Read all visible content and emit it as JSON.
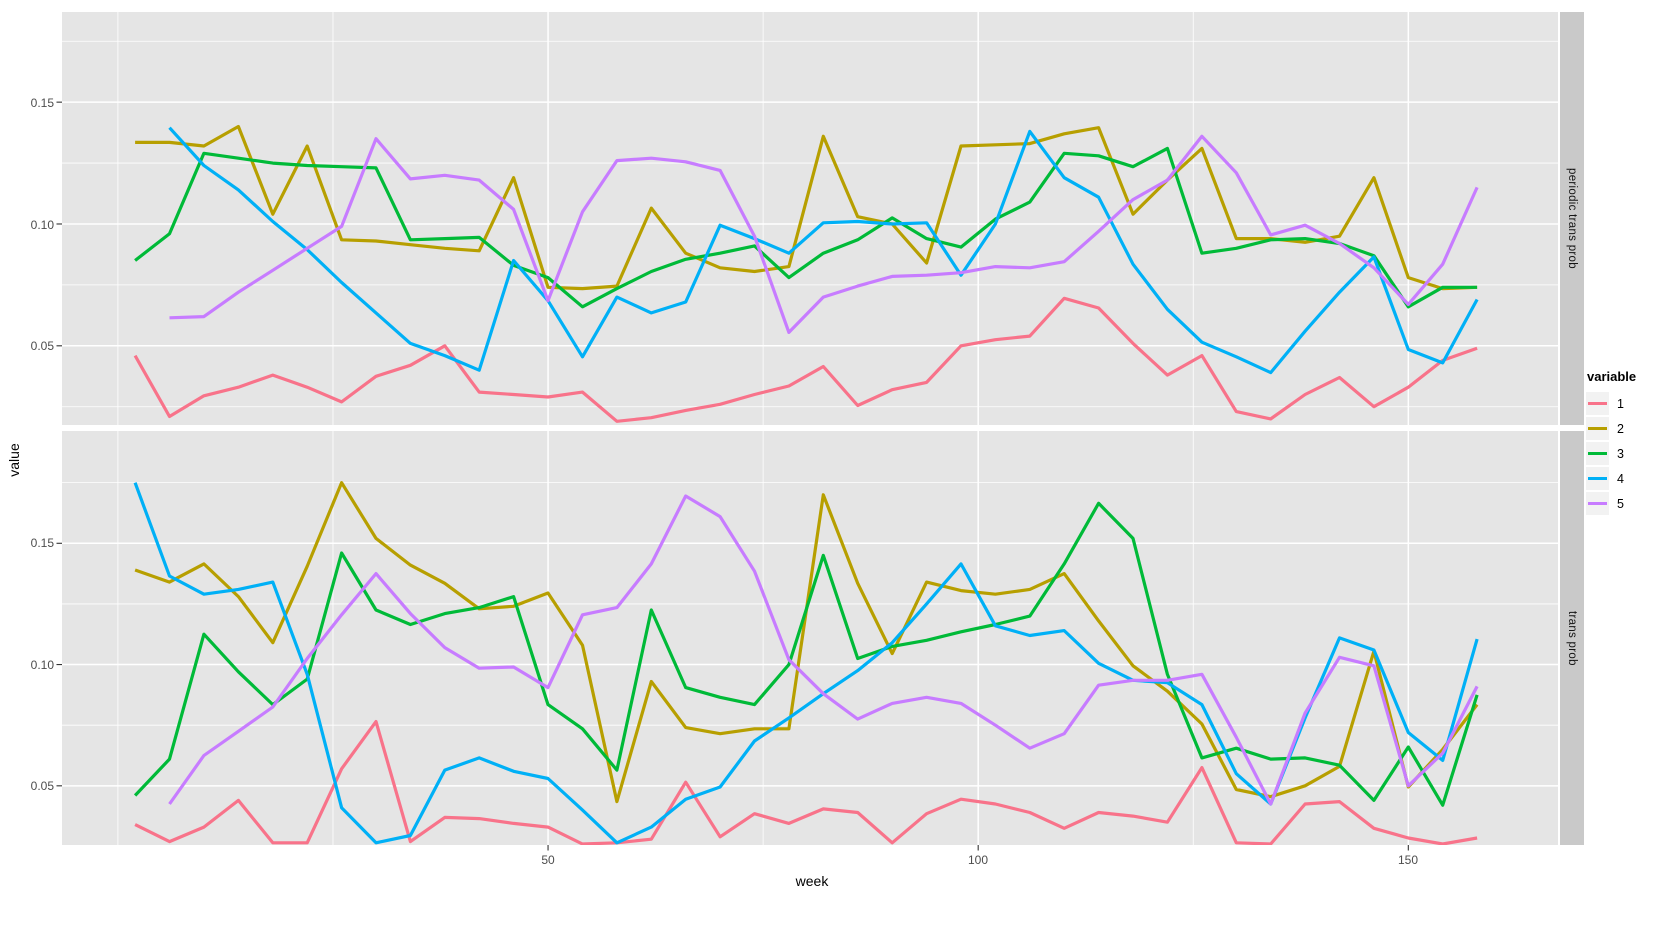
{
  "chart_data": {
    "type": "line",
    "title": "",
    "xlabel": "week",
    "ylabel": "value",
    "legend_title": "variable",
    "legend_position": "right",
    "grid": "on",
    "grid_color": "#ffffff",
    "panel_bg": "#e5e5e5",
    "strip_bg": "#c9c9c9",
    "tick_color": "#333333",
    "series_names": [
      "1",
      "2",
      "3",
      "4",
      "5"
    ],
    "colors": [
      "#F8738A",
      "#B79F00",
      "#00BA38",
      "#00B0F6",
      "#C77CFF"
    ],
    "x_tick_labels": [
      "50",
      "100",
      "150"
    ],
    "y_tick_labels": [
      "0.05",
      "0.10",
      "0.15"
    ],
    "x_ticks": [
      50,
      100,
      150
    ],
    "x_minor": [
      0,
      25,
      75,
      125
    ],
    "y_ticks": [
      0.05,
      0.1,
      0.15
    ],
    "y_minor": [
      0.025,
      0.075,
      0.125,
      0.175
    ],
    "x_domain": [
      -6.5,
      167.4
    ],
    "weeks": [
      2,
      6,
      10,
      14,
      18,
      22,
      26,
      30,
      34,
      38,
      42,
      46,
      50,
      54,
      58,
      62,
      66,
      70,
      74,
      78,
      82,
      86,
      90,
      94,
      98,
      102,
      106,
      110,
      114,
      118,
      122,
      126,
      130,
      134,
      138,
      142,
      146,
      150,
      154,
      158
    ],
    "facets": [
      {
        "label": "periodic trans prob",
        "y_domain": [
          0.0175,
          0.187
        ],
        "series": [
          {
            "name": "1",
            "values": [
              0.046,
              0.021,
              0.0295,
              0.033,
              0.038,
              0.033,
              0.027,
              0.0375,
              0.042,
              0.05,
              0.031,
              0.03,
              0.029,
              0.031,
              0.019,
              0.0205,
              0.0235,
              0.026,
              0.03,
              0.0335,
              0.0415,
              0.0255,
              0.032,
              0.035,
              0.05,
              0.0525,
              0.054,
              0.0695,
              0.0655,
              0.051,
              0.038,
              0.046,
              0.023,
              0.02,
              0.03,
              0.037,
              0.025,
              0.033,
              0.044,
              0.049
            ]
          },
          {
            "name": "2",
            "values": [
              0.1335,
              0.1335,
              0.132,
              0.14,
              0.104,
              0.132,
              0.0935,
              0.093,
              0.0915,
              0.09,
              0.089,
              0.119,
              0.074,
              0.0735,
              0.0745,
              0.1065,
              0.088,
              0.082,
              0.0805,
              0.0825,
              0.136,
              0.103,
              0.1,
              0.084,
              0.132,
              0.1325,
              0.133,
              0.137,
              0.1395,
              0.104,
              0.118,
              0.131,
              0.094,
              0.094,
              0.0925,
              0.095,
              0.119,
              0.078,
              0.0735,
              0.074
            ]
          },
          {
            "name": "3",
            "values": [
              0.085,
              0.096,
              0.129,
              0.127,
              0.125,
              0.124,
              0.1235,
              0.123,
              0.0935,
              0.094,
              0.0945,
              0.083,
              0.078,
              0.066,
              0.0735,
              0.0805,
              0.0855,
              0.088,
              0.091,
              0.078,
              0.088,
              0.0935,
              0.1025,
              0.094,
              0.0905,
              0.102,
              0.109,
              0.129,
              0.128,
              0.1235,
              0.131,
              0.088,
              0.09,
              0.0935,
              0.094,
              0.092,
              0.087,
              0.066,
              0.074,
              0.074
            ]
          },
          {
            "name": "4",
            "values": [
              null,
              0.1395,
              0.124,
              0.114,
              0.101,
              0.0895,
              0.076,
              0.0635,
              0.051,
              0.046,
              0.04,
              0.085,
              0.0685,
              0.0455,
              0.07,
              0.0635,
              0.068,
              0.0995,
              0.094,
              0.088,
              0.1005,
              0.101,
              0.1,
              0.1005,
              0.079,
              0.1,
              0.138,
              0.119,
              0.111,
              0.0835,
              0.065,
              0.0515,
              0.0455,
              0.039,
              0.056,
              0.072,
              0.0865,
              0.0485,
              0.043,
              0.069
            ]
          },
          {
            "name": "5",
            "values": [
              null,
              0.0615,
              0.062,
              0.072,
              0.081,
              0.09,
              0.099,
              0.135,
              0.1185,
              0.12,
              0.118,
              0.106,
              0.0685,
              0.105,
              0.126,
              0.127,
              0.1255,
              0.122,
              0.095,
              0.0555,
              0.07,
              0.0745,
              0.0785,
              0.079,
              0.08,
              0.0825,
              0.082,
              0.0845,
              0.097,
              0.11,
              0.118,
              0.136,
              0.121,
              0.0955,
              0.0995,
              0.092,
              0.082,
              0.067,
              0.0835,
              0.115
            ]
          }
        ]
      },
      {
        "label": "trans prob",
        "y_domain": [
          0.0256,
          0.1963
        ],
        "series": [
          {
            "name": "1",
            "values": [
              0.034,
              0.027,
              0.033,
              0.044,
              0.0265,
              0.0265,
              0.057,
              0.0765,
              0.027,
              0.037,
              0.0365,
              0.0345,
              0.033,
              0.026,
              0.0265,
              0.028,
              0.0515,
              0.029,
              0.0385,
              0.0345,
              0.0405,
              0.039,
              0.0265,
              0.0385,
              0.0445,
              0.0425,
              0.039,
              0.0325,
              0.039,
              0.0375,
              0.035,
              0.0575,
              0.0265,
              0.026,
              0.0425,
              0.0435,
              0.0325,
              0.0285,
              0.026,
              0.0285
            ]
          },
          {
            "name": "2",
            "values": [
              0.139,
              0.134,
              0.1415,
              0.128,
              0.109,
              0.1405,
              0.175,
              0.152,
              0.141,
              0.1335,
              0.123,
              0.124,
              0.1295,
              0.108,
              0.0435,
              0.093,
              0.074,
              0.0715,
              0.0735,
              0.0735,
              0.17,
              0.1335,
              0.1045,
              0.134,
              0.1305,
              0.129,
              0.131,
              0.1375,
              0.118,
              0.0995,
              0.089,
              0.0755,
              0.0485,
              0.0455,
              0.05,
              0.058,
              0.1055,
              0.0495,
              0.065,
              0.0835
            ]
          },
          {
            "name": "3",
            "values": [
              0.046,
              0.061,
              0.1125,
              0.097,
              0.0835,
              0.094,
              0.146,
              0.1225,
              0.1165,
              0.121,
              0.1235,
              0.128,
              0.0835,
              0.0735,
              0.0565,
              0.1225,
              0.0905,
              0.0865,
              0.0835,
              0.1,
              0.145,
              0.1025,
              0.1075,
              0.11,
              0.1135,
              0.1165,
              0.12,
              0.1415,
              0.1665,
              0.152,
              0.096,
              0.0615,
              0.0655,
              0.061,
              0.0615,
              0.0585,
              0.044,
              0.066,
              0.042,
              0.0875
            ]
          },
          {
            "name": "4",
            "values": [
              0.175,
              0.1365,
              0.129,
              0.131,
              0.134,
              0.096,
              0.041,
              0.0265,
              0.0295,
              0.0565,
              0.0615,
              0.056,
              0.053,
              0.04,
              0.0265,
              0.033,
              0.0445,
              0.0495,
              0.0685,
              0.078,
              0.088,
              0.0975,
              0.109,
              0.125,
              0.1415,
              0.116,
              0.112,
              0.114,
              0.1005,
              0.0935,
              0.0925,
              0.0835,
              0.055,
              0.0425,
              0.078,
              0.111,
              0.106,
              0.072,
              0.0605,
              0.1105
            ]
          },
          {
            "name": "5",
            "values": [
              null,
              0.0425,
              0.0625,
              0.0725,
              0.0825,
              0.1025,
              0.1205,
              0.1375,
              0.121,
              0.107,
              0.0985,
              0.099,
              0.0905,
              0.1205,
              0.1235,
              0.1415,
              0.1695,
              0.161,
              0.1385,
              0.102,
              0.088,
              0.0775,
              0.084,
              0.0865,
              0.084,
              0.075,
              0.0655,
              0.0715,
              0.0915,
              0.0935,
              0.0935,
              0.096,
              0.07,
              0.0425,
              0.08,
              0.103,
              0.0995,
              0.05,
              0.0635,
              0.091
            ]
          }
        ]
      }
    ]
  }
}
